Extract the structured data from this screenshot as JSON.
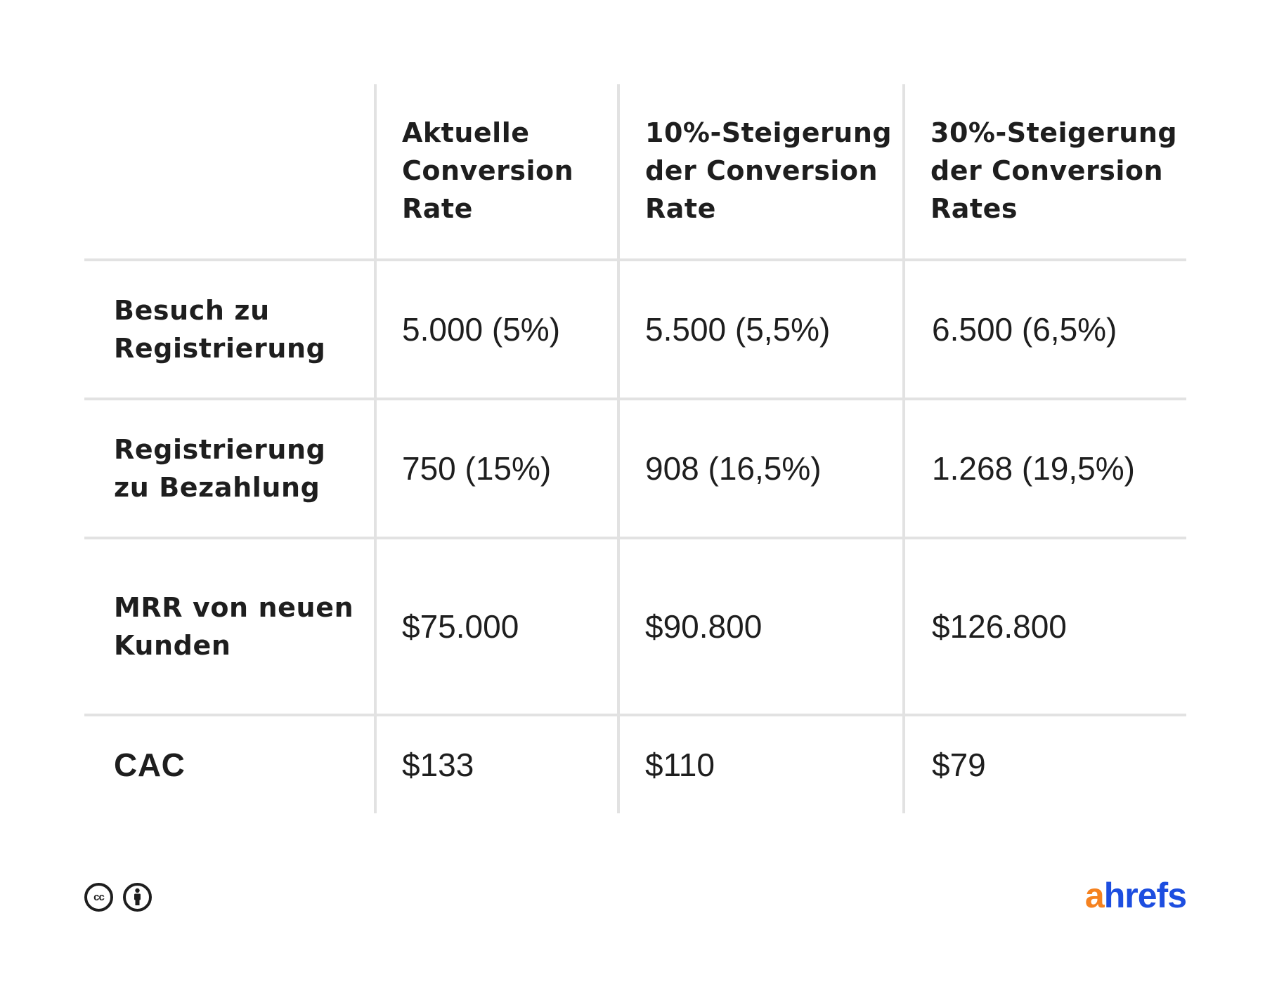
{
  "table": {
    "headers": [
      "",
      "Aktuelle Conversion Rate",
      "10%-Steigerung der Conversion Rate",
      "30%-Steigerung der Conversion Rates"
    ],
    "rows": [
      {
        "label": "Besuch zu Registrierung",
        "values": [
          "5.000 (5%)",
          "5.500 (5,5%)",
          "6.500 (6,5%)"
        ]
      },
      {
        "label": "Registrierung zu Bezahlung",
        "values": [
          "750 (15%)",
          "908 (16,5%)",
          "1.268 (19,5%)"
        ]
      },
      {
        "label": "MRR von neuen Kunden",
        "values": [
          "$75.000",
          "$90.800",
          "$126.800"
        ]
      },
      {
        "label": "CAC",
        "values": [
          "$133",
          "$110",
          "$79"
        ]
      }
    ]
  },
  "footer": {
    "license_icons": [
      "creative-commons-icon",
      "attribution-icon"
    ],
    "cc_text": "cc",
    "logo": {
      "part_a": "a",
      "part_rest": "hrefs"
    },
    "colors": {
      "logo_orange": "#f58220",
      "logo_blue": "#1d4ee0"
    }
  }
}
